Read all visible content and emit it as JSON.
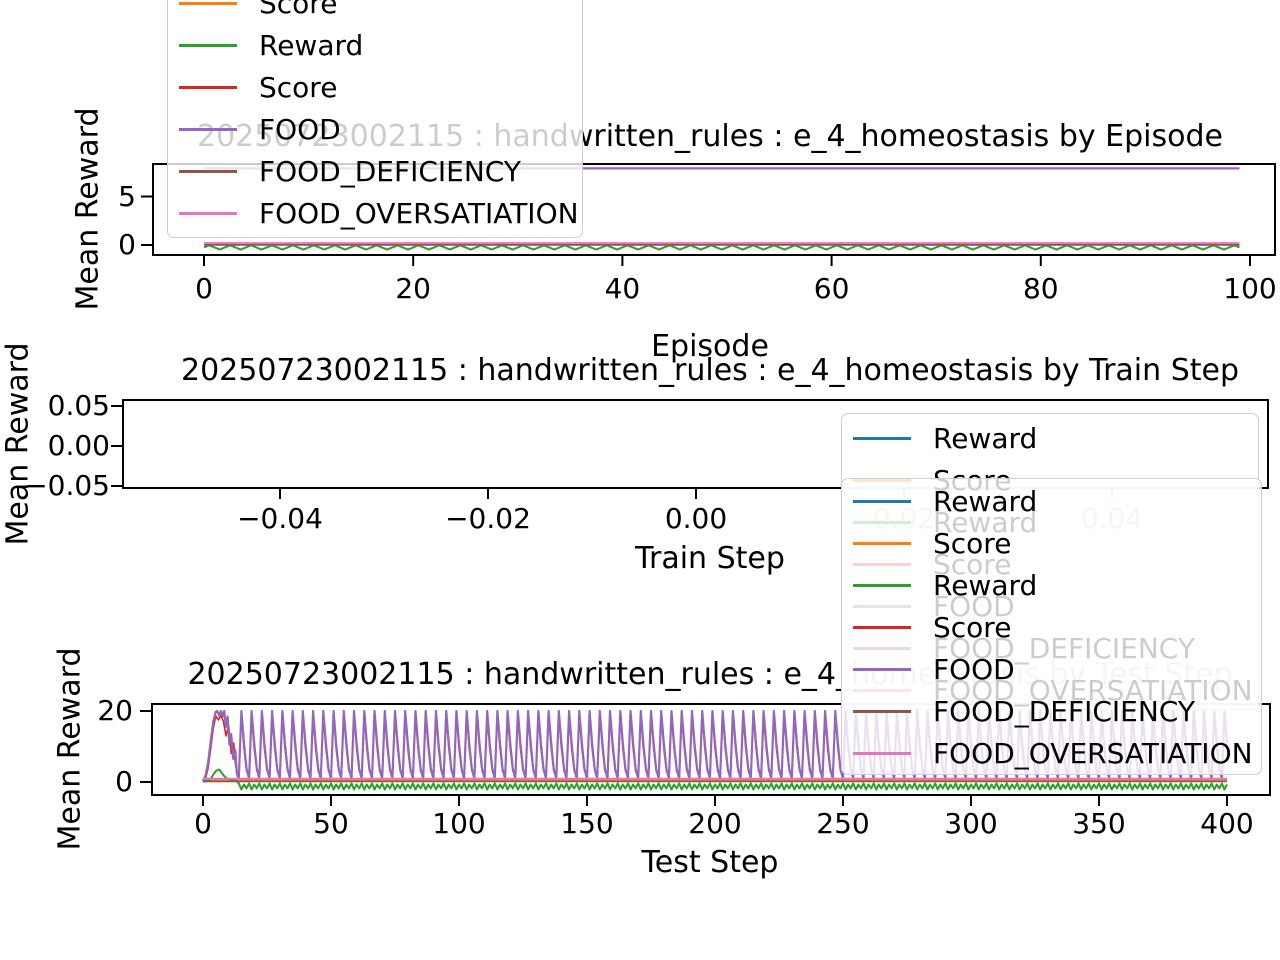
{
  "figure_background": "#ffffff",
  "palette": {
    "blue": "#1f77b4",
    "orange": "#ff7f0e",
    "green": "#2ca02c",
    "red": "#d62728",
    "purple": "#9467bd",
    "brown": "#8c564b",
    "pink": "#e377c2",
    "axis": "#000000",
    "legend_border": "#cfcfcf",
    "faded_text": "#cccccc"
  },
  "legend": {
    "entries": [
      {
        "label": "Reward",
        "color": "#1f77b4"
      },
      {
        "label": "Score",
        "color": "#ff7f0e"
      },
      {
        "label": "Reward",
        "color": "#2ca02c"
      },
      {
        "label": "Score",
        "color": "#d62728"
      },
      {
        "label": "FOOD",
        "color": "#9467bd"
      },
      {
        "label": "FOOD_DEFICIENCY",
        "color": "#8c564b"
      },
      {
        "label": "FOOD_OVERSATIATION",
        "color": "#e377c2"
      }
    ]
  },
  "chart_data": [
    {
      "type": "line",
      "title": "20250723002115 : handwritten_rules : e_4_homeostasis by Episode",
      "xlabel": "Episode",
      "ylabel": "Mean Reward",
      "xlim": [
        -5,
        102
      ],
      "ylim": [
        -1.1,
        8.4
      ],
      "grid": false,
      "xticks": {
        "values": [
          0,
          20,
          40,
          60,
          80,
          100
        ],
        "labels": [
          "0",
          "20",
          "40",
          "60",
          "80",
          "100"
        ]
      },
      "yticks": {
        "values": [
          5,
          0
        ],
        "labels": [
          "5",
          "0"
        ]
      },
      "legend_position": "upper-left, clipped at top of image",
      "series": [
        {
          "name": "Reward",
          "color": "#1f77b4",
          "kind": "flat",
          "x": [
            0,
            99
          ],
          "y": 0.0,
          "w": 1.4
        },
        {
          "name": "Score",
          "color": "#ff7f0e",
          "kind": "flat",
          "x": [
            0,
            99
          ],
          "y": 0.08,
          "w": 1.4
        },
        {
          "name": "Reward",
          "color": "#2ca02c",
          "kind": "wiggle",
          "x": [
            0,
            99
          ],
          "y": -0.25,
          "amp": 0.22,
          "period": 2,
          "w": 2
        },
        {
          "name": "Score",
          "color": "#d62728",
          "kind": "flat",
          "x": [
            0,
            99
          ],
          "y": 0.04,
          "w": 1.4
        },
        {
          "name": "FOOD",
          "color": "#9467bd",
          "kind": "flat",
          "x": [
            0,
            99
          ],
          "y": 7.9,
          "w": 2.2
        },
        {
          "name": "FOOD_DEFICIENCY",
          "color": "#8c564b",
          "kind": "flat",
          "x": [
            0,
            99
          ],
          "y": 0.12,
          "w": 1.4
        },
        {
          "name": "FOOD_OVERSATIATION",
          "color": "#e377c2",
          "kind": "flat",
          "x": [
            0,
            99
          ],
          "y": 0.2,
          "w": 2
        }
      ]
    },
    {
      "type": "line",
      "title": "20250723002115 : handwritten_rules : e_4_homeostasis by Train Step",
      "xlabel": "Train Step",
      "ylabel": "Mean Reward",
      "xlim": [
        -0.055,
        0.055
      ],
      "ylim": [
        -0.055,
        0.055
      ],
      "grid": false,
      "xticks": {
        "values": [
          -0.04,
          -0.02,
          0,
          0.02,
          0.04
        ],
        "labels": [
          "−0.04",
          "−0.02",
          "0.00",
          "0.02",
          "0.04"
        ]
      },
      "yticks": {
        "values": [
          0.05,
          0,
          -0.05
        ],
        "labels": [
          "0.05",
          "0.00",
          "−0.05"
        ]
      },
      "legend_position": "upper-right inside axes",
      "series": []
    },
    {
      "type": "line",
      "title": "20250723002115 : handwritten_rules : e_4_homeostasis by Test Step",
      "xlabel": "Test Step",
      "ylabel": "Mean Reward",
      "xlim": [
        -18,
        418
      ],
      "ylim": [
        -3.5,
        22.2
      ],
      "grid": false,
      "xticks": {
        "values": [
          0,
          50,
          100,
          150,
          200,
          250,
          300,
          350,
          400
        ],
        "labels": [
          "0",
          "50",
          "100",
          "150",
          "200",
          "250",
          "300",
          "350",
          "400"
        ]
      },
      "yticks": {
        "values": [
          20,
          0
        ],
        "labels": [
          "20",
          "0"
        ]
      },
      "legend_position": "upper-right, overlapping plot",
      "series": [
        {
          "name": "Reward",
          "color": "#1f77b4",
          "kind": "flat",
          "x": [
            0,
            400
          ],
          "y": 0.35,
          "w": 1.4
        },
        {
          "name": "Score",
          "color": "#ff7f0e",
          "kind": "flat",
          "x": [
            0,
            400
          ],
          "y": 0.5,
          "w": 1.4
        },
        {
          "name": "Reward",
          "color": "#2ca02c",
          "kind": "path",
          "w": 2,
          "points": [
            [
              0,
              0.1
            ],
            [
              1,
              0.2
            ],
            [
              2,
              0.4
            ],
            [
              3,
              0.9
            ],
            [
              4,
              2.0
            ],
            [
              5,
              3.1
            ],
            [
              6,
              3.5
            ],
            [
              6.5,
              3.4
            ],
            [
              7,
              2.9
            ],
            [
              8,
              1.9
            ],
            [
              9,
              1.2
            ],
            [
              10,
              0.8
            ],
            [
              11,
              0.6
            ],
            [
              12,
              0.45
            ],
            [
              13,
              0.3
            ]
          ],
          "osc": {
            "from": 14,
            "to": 400,
            "period": 4,
            "pattern": [
              -0.4,
              -2.1,
              -0.7,
              -1.8
            ]
          }
        },
        {
          "name": "Score",
          "color": "#d62728",
          "kind": "path",
          "w": 1.6,
          "points": [
            [
              0,
              0.2
            ],
            [
              1,
              1.0
            ],
            [
              2,
              4.0
            ],
            [
              3,
              9.5
            ],
            [
              4,
              15.0
            ],
            [
              5,
              18.6
            ],
            [
              6,
              17.5
            ],
            [
              7,
              18.8
            ],
            [
              8,
              17.0
            ],
            [
              9,
              13.0
            ],
            [
              10,
              16.0
            ],
            [
              11,
              8.0
            ],
            [
              12,
              11.0
            ],
            [
              12.7,
              5.0
            ],
            [
              13.5,
              1.5
            ]
          ],
          "osc": {
            "from": 14,
            "to": 400,
            "period": 4,
            "pattern": [
              1.2,
              18.6,
              9.5,
              3.2
            ]
          }
        },
        {
          "name": "FOOD",
          "color": "#9467bd",
          "kind": "path",
          "w": 2.2,
          "points": [
            [
              0,
              0.3
            ],
            [
              1,
              1.8
            ],
            [
              2,
              5.5
            ],
            [
              3,
              11.5
            ],
            [
              4,
              17.0
            ],
            [
              5,
              19.8
            ],
            [
              5.6,
              20.0
            ],
            [
              6.3,
              18.8
            ],
            [
              7,
              20.0
            ],
            [
              7.8,
              18.5
            ],
            [
              8.3,
              20.0
            ],
            [
              9,
              15.5
            ],
            [
              9.6,
              18.5
            ],
            [
              10.3,
              10.5
            ],
            [
              11,
              13.5
            ],
            [
              11.8,
              6.5
            ],
            [
              12.6,
              9.0
            ],
            [
              13.3,
              2.2
            ],
            [
              13.9,
              0.9
            ]
          ],
          "osc": {
            "from": 14,
            "to": 400,
            "period": 4,
            "pattern": [
              0.9,
              20,
              11,
              3.8
            ]
          }
        },
        {
          "name": "FOOD_DEFICIENCY",
          "color": "#8c564b",
          "kind": "flat",
          "x": [
            0,
            400
          ],
          "y": 0.15,
          "w": 1.4
        },
        {
          "name": "FOOD_OVERSATIATION",
          "color": "#e377c2",
          "kind": "flat",
          "x": [
            0,
            400
          ],
          "y": 0.9,
          "w": 2
        }
      ]
    }
  ]
}
